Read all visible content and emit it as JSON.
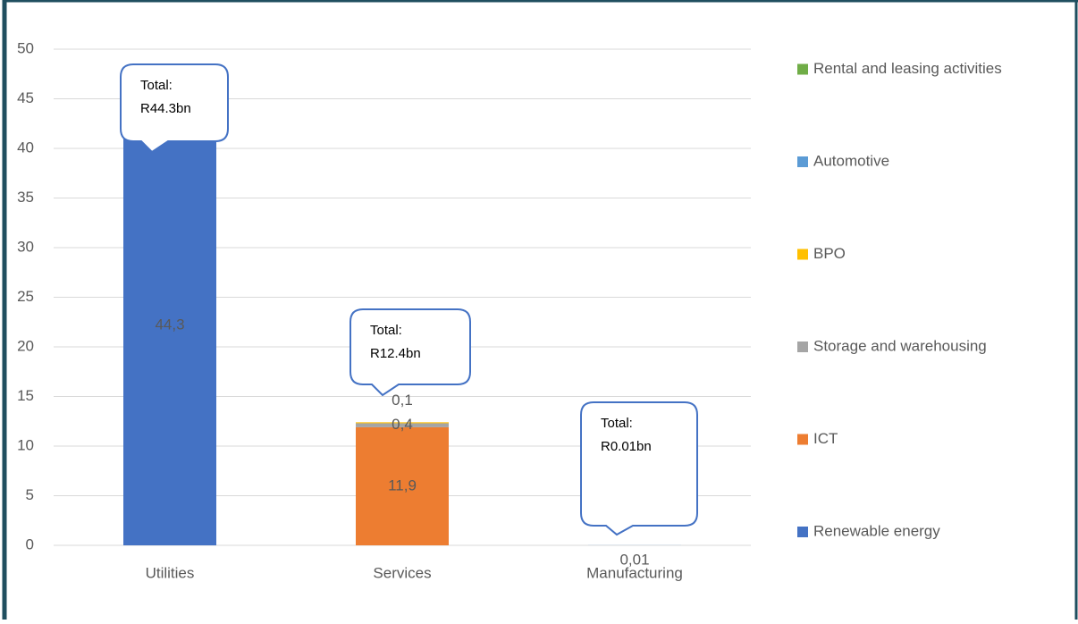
{
  "chart_data": {
    "type": "bar",
    "stacked": true,
    "categories": [
      "Utilities",
      "Services",
      "Manufacturing"
    ],
    "series": [
      {
        "name": "Renewable energy",
        "color": "#4472c4",
        "values": [
          44.3,
          null,
          null
        ],
        "value_labels": [
          "44,3",
          null,
          null
        ]
      },
      {
        "name": "ICT",
        "color": "#ed7d31",
        "values": [
          null,
          11.9,
          null
        ],
        "value_labels": [
          null,
          "11,9",
          null
        ]
      },
      {
        "name": "Storage and warehousing",
        "color": "#a5a5a5",
        "values": [
          null,
          0.4,
          null
        ],
        "value_labels": [
          null,
          "0,4",
          null
        ]
      },
      {
        "name": "BPO",
        "color": "#ffc000",
        "values": [
          null,
          0.1,
          null
        ],
        "value_labels": [
          null,
          "0,1",
          null
        ]
      },
      {
        "name": "Automotive",
        "color": "#5b9bd5",
        "values": [
          null,
          null,
          0.01
        ],
        "value_labels": [
          null,
          null,
          "0,01"
        ]
      },
      {
        "name": "Rental and leasing activities",
        "color": "#70ad47",
        "values": [
          null,
          null,
          null
        ],
        "value_labels": [
          null,
          null,
          null
        ]
      }
    ],
    "annotations": [
      [
        "Total:",
        "R44.3bn"
      ],
      [
        "Total:",
        "R12.4bn"
      ],
      [
        "Total:",
        "R0.01bn"
      ]
    ],
    "ylim": [
      0,
      50
    ],
    "yticks": [
      0,
      5,
      10,
      15,
      20,
      25,
      30,
      35,
      40,
      45,
      50
    ],
    "grid": true,
    "legend": "right"
  }
}
